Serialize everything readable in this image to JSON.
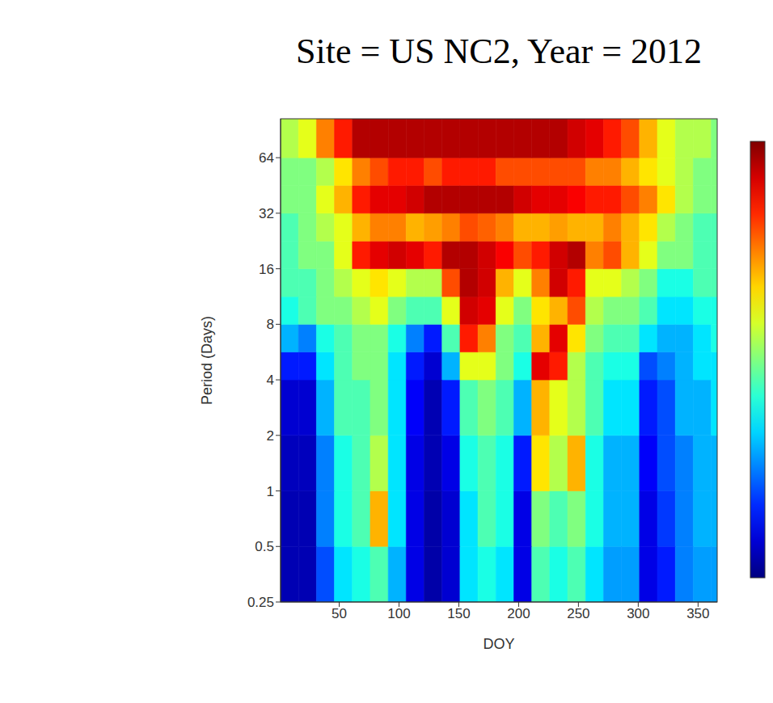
{
  "chart_data": {
    "type": "heatmap",
    "title": "Site = US NC2, Year = 2012",
    "x_label": "DOY",
    "y_label": "Period (Days)",
    "xlim": [
      1,
      366
    ],
    "xticks": [
      50,
      100,
      150,
      200,
      250,
      300,
      350
    ],
    "ylim": [
      0.25,
      104
    ],
    "yticks": [
      0.25,
      0.5,
      1,
      2,
      4,
      8,
      16,
      32,
      64
    ],
    "log": "y",
    "x_edges": [
      1,
      16,
      31,
      46,
      61,
      76,
      91,
      106,
      121,
      136,
      151,
      166,
      181,
      196,
      211,
      226,
      241,
      256,
      271,
      286,
      301,
      316,
      331,
      346,
      361,
      366
    ],
    "y_edges": [
      0.25,
      0.5,
      1,
      2,
      4,
      5.66,
      8,
      11.3,
      16,
      22.6,
      32,
      45.3,
      64,
      104
    ],
    "cells": [
      [
        0.05,
        0.05,
        0.2,
        0.35,
        0.4,
        0.45,
        0.3,
        0.1,
        0.04,
        0.08,
        0.35,
        0.4,
        0.35,
        0.1,
        0.45,
        0.4,
        0.45,
        0.35,
        0.28,
        0.28,
        0.1,
        0.15,
        0.25,
        0.28,
        0.28
      ],
      [
        0.05,
        0.05,
        0.25,
        0.4,
        0.45,
        0.7,
        0.35,
        0.1,
        0.04,
        0.08,
        0.35,
        0.45,
        0.4,
        0.1,
        0.5,
        0.45,
        0.5,
        0.4,
        0.3,
        0.3,
        0.1,
        0.18,
        0.25,
        0.3,
        0.3
      ],
      [
        0.06,
        0.06,
        0.25,
        0.4,
        0.45,
        0.55,
        0.35,
        0.1,
        0.05,
        0.1,
        0.4,
        0.45,
        0.4,
        0.15,
        0.65,
        0.55,
        0.7,
        0.4,
        0.3,
        0.3,
        0.12,
        0.2,
        0.25,
        0.3,
        0.3
      ],
      [
        0.08,
        0.08,
        0.3,
        0.45,
        0.45,
        0.5,
        0.35,
        0.12,
        0.05,
        0.15,
        0.45,
        0.5,
        0.45,
        0.3,
        0.7,
        0.6,
        0.55,
        0.45,
        0.35,
        0.35,
        0.15,
        0.2,
        0.3,
        0.3,
        0.35
      ],
      [
        0.15,
        0.15,
        0.35,
        0.45,
        0.5,
        0.5,
        0.35,
        0.15,
        0.08,
        0.3,
        0.6,
        0.6,
        0.5,
        0.4,
        0.9,
        0.85,
        0.55,
        0.45,
        0.4,
        0.4,
        0.2,
        0.25,
        0.3,
        0.35,
        0.35
      ],
      [
        0.3,
        0.25,
        0.4,
        0.45,
        0.5,
        0.5,
        0.4,
        0.25,
        0.15,
        0.45,
        0.85,
        0.75,
        0.5,
        0.45,
        0.7,
        0.9,
        0.65,
        0.5,
        0.45,
        0.45,
        0.35,
        0.3,
        0.3,
        0.35,
        0.4
      ],
      [
        0.4,
        0.45,
        0.5,
        0.5,
        0.55,
        0.6,
        0.5,
        0.45,
        0.45,
        0.6,
        0.92,
        0.9,
        0.6,
        0.5,
        0.65,
        0.7,
        0.8,
        0.55,
        0.5,
        0.5,
        0.45,
        0.35,
        0.35,
        0.4,
        0.4
      ],
      [
        0.45,
        0.45,
        0.5,
        0.55,
        0.6,
        0.65,
        0.6,
        0.55,
        0.55,
        0.8,
        0.95,
        0.92,
        0.7,
        0.6,
        0.75,
        0.92,
        0.85,
        0.6,
        0.6,
        0.55,
        0.5,
        0.4,
        0.4,
        0.45,
        0.45
      ],
      [
        0.45,
        0.5,
        0.5,
        0.6,
        0.85,
        0.9,
        0.92,
        0.9,
        0.85,
        0.95,
        0.95,
        0.92,
        0.88,
        0.8,
        0.85,
        0.92,
        0.95,
        0.75,
        0.8,
        0.7,
        0.6,
        0.5,
        0.5,
        0.45,
        0.45
      ],
      [
        0.45,
        0.5,
        0.55,
        0.6,
        0.7,
        0.75,
        0.75,
        0.7,
        0.72,
        0.75,
        0.8,
        0.78,
        0.75,
        0.7,
        0.7,
        0.72,
        0.7,
        0.7,
        0.75,
        0.7,
        0.65,
        0.55,
        0.5,
        0.45,
        0.45
      ],
      [
        0.5,
        0.5,
        0.6,
        0.7,
        0.85,
        0.9,
        0.9,
        0.92,
        0.95,
        0.95,
        0.95,
        0.95,
        0.95,
        0.92,
        0.9,
        0.9,
        0.88,
        0.85,
        0.85,
        0.8,
        0.75,
        0.65,
        0.55,
        0.5,
        0.5
      ],
      [
        0.5,
        0.5,
        0.55,
        0.65,
        0.75,
        0.8,
        0.85,
        0.85,
        0.8,
        0.85,
        0.85,
        0.85,
        0.8,
        0.8,
        0.8,
        0.8,
        0.8,
        0.75,
        0.75,
        0.7,
        0.65,
        0.6,
        0.55,
        0.5,
        0.5
      ],
      [
        0.55,
        0.6,
        0.75,
        0.85,
        0.95,
        0.95,
        0.95,
        0.95,
        0.95,
        0.95,
        0.95,
        0.95,
        0.95,
        0.95,
        0.95,
        0.95,
        0.92,
        0.9,
        0.85,
        0.8,
        0.7,
        0.6,
        0.55,
        0.55,
        0.5
      ]
    ],
    "colorbar": {
      "range": [
        0,
        1
      ]
    }
  }
}
